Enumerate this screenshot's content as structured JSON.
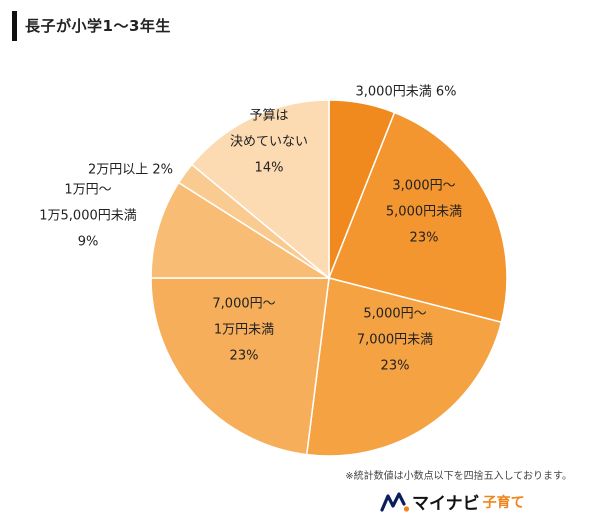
{
  "title": "長子が小学1〜3年生",
  "note": "※統計数値は小数点以下を四捨五入しております。",
  "logo": {
    "brand": "マイナビ",
    "sub": "子育て",
    "icon": "mynavi-logo-icon"
  },
  "chart_data": {
    "type": "pie",
    "title": "長子が小学1〜3年生",
    "unit": "%",
    "start": "12 o'clock, clockwise",
    "slices": [
      {
        "label_lines": [
          "3,000円未満 6%"
        ],
        "value": 6,
        "color": "#f08a1e",
        "label_outside": true
      },
      {
        "label_lines": [
          "3,000円〜",
          "5,000円未満",
          "23%"
        ],
        "value": 23,
        "color": "#f3962f",
        "label_outside": false
      },
      {
        "label_lines": [
          "5,000円〜",
          "7,000円未満",
          "23%"
        ],
        "value": 23,
        "color": "#f5a243",
        "label_outside": false
      },
      {
        "label_lines": [
          "7,000円〜",
          "1万円未満",
          "23%"
        ],
        "value": 23,
        "color": "#f6ae5a",
        "label_outside": false
      },
      {
        "label_lines": [
          "1万円〜",
          "1万5,000円未満",
          "9%"
        ],
        "value": 9,
        "color": "#f8bc74",
        "label_outside": true
      },
      {
        "label_lines": [
          "2万円以上 2%"
        ],
        "value": 2,
        "color": "#facb91",
        "label_outside": true
      },
      {
        "label_lines": [
          "予算は",
          "決めていない",
          "14%"
        ],
        "value": 14,
        "color": "#fcdbb2",
        "label_outside": false
      }
    ]
  }
}
